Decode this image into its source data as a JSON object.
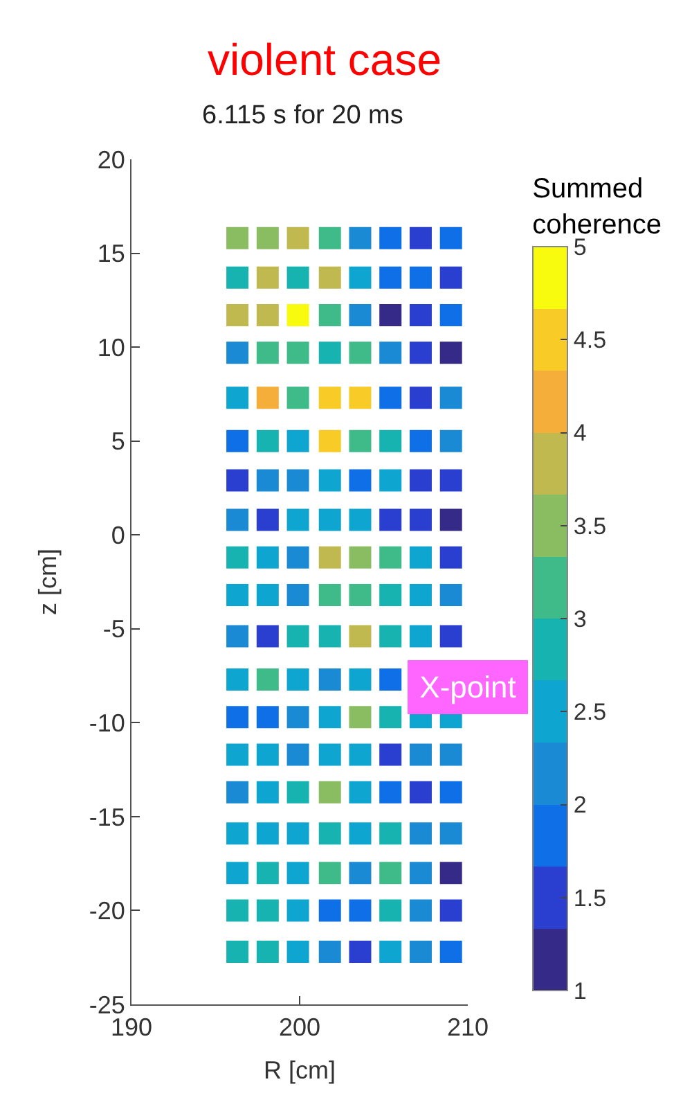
{
  "chart_data": {
    "type": "scatter",
    "title": "violent case",
    "subtitle": "6.115 s for 20 ms",
    "xlabel": "R [cm]",
    "ylabel": "z [cm]",
    "clabel": "Summed coherence",
    "marker": "square",
    "xlim": [
      190,
      210
    ],
    "xticks": [
      190,
      200,
      210
    ],
    "ylim": [
      -25,
      20
    ],
    "yticks": [
      -25,
      -20,
      -15,
      -10,
      -5,
      0,
      5,
      10,
      15,
      20
    ],
    "clim": [
      1,
      5
    ],
    "cticks": [
      1,
      1.5,
      2,
      2.5,
      3,
      3.5,
      4,
      4.5,
      5
    ],
    "annotations": [
      "X-point"
    ],
    "x": [
      196.3,
      198.1,
      199.9,
      201.8,
      203.6,
      205.4,
      207.2,
      209.0,
      196.3,
      198.1,
      199.9,
      201.8,
      203.6,
      205.4,
      207.2,
      209.0,
      196.3,
      198.1,
      199.9,
      201.8,
      203.6,
      205.4,
      207.2,
      209.0,
      196.3,
      198.1,
      199.9,
      201.8,
      203.6,
      205.4,
      207.2,
      209.0,
      196.3,
      198.1,
      199.9,
      201.8,
      203.6,
      205.4,
      207.2,
      209.0,
      196.3,
      198.1,
      199.9,
      201.8,
      203.6,
      205.4,
      207.2,
      209.0,
      196.3,
      198.1,
      199.9,
      201.8,
      203.6,
      205.4,
      207.2,
      209.0,
      196.3,
      198.1,
      199.9,
      201.8,
      203.6,
      205.4,
      207.2,
      209.0,
      196.3,
      198.1,
      199.9,
      201.8,
      203.6,
      205.4,
      207.2,
      209.0,
      196.3,
      198.1,
      199.9,
      201.8,
      203.6,
      205.4,
      207.2,
      209.0,
      196.3,
      198.1,
      199.9,
      201.8,
      203.6,
      205.4,
      207.2,
      209.0,
      196.3,
      198.1,
      199.9,
      201.8,
      203.6,
      205.4,
      null,
      null,
      196.3,
      198.1,
      199.9,
      201.8,
      203.6,
      205.4,
      207.2,
      209.0,
      196.3,
      198.1,
      199.9,
      201.8,
      203.6,
      205.4,
      207.2,
      209.0,
      196.3,
      198.1,
      199.9,
      201.8,
      203.6,
      205.4,
      207.2,
      209.0,
      196.3,
      198.1,
      199.9,
      201.8,
      203.6,
      205.4,
      207.2,
      209.0,
      196.3,
      198.1,
      199.9,
      201.8,
      203.6,
      205.4,
      207.2,
      209.0,
      196.3,
      198.1,
      199.9,
      201.8,
      203.6,
      205.4,
      207.2,
      209.0,
      196.3,
      198.1,
      199.9,
      201.8,
      203.6,
      205.4,
      207.2,
      209.0
    ],
    "values": [
      15.8,
      15.8,
      15.8,
      15.8,
      15.8,
      15.8,
      15.8,
      15.8,
      13.7,
      13.7,
      13.7,
      13.7,
      13.7,
      13.7,
      13.7,
      13.7,
      11.7,
      11.7,
      11.7,
      11.7,
      11.7,
      11.7,
      11.7,
      11.7,
      9.7,
      9.7,
      9.7,
      9.7,
      9.7,
      9.7,
      9.7,
      9.7,
      7.3,
      7.3,
      7.3,
      7.3,
      7.3,
      7.3,
      7.3,
      7.3,
      5.0,
      5.0,
      5.0,
      5.0,
      5.0,
      5.0,
      5.0,
      5.0,
      2.9,
      2.9,
      2.9,
      2.9,
      2.9,
      2.9,
      2.9,
      2.9,
      0.8,
      0.8,
      0.8,
      0.8,
      0.8,
      0.8,
      0.8,
      0.8,
      -1.2,
      -1.2,
      -1.2,
      -1.2,
      -1.2,
      -1.2,
      -1.2,
      -1.2,
      -3.2,
      -3.2,
      -3.2,
      -3.2,
      -3.2,
      -3.2,
      -3.2,
      -3.2,
      -5.4,
      -5.4,
      -5.4,
      -5.4,
      -5.4,
      -5.4,
      -5.4,
      -5.4,
      -7.7,
      -7.7,
      -7.7,
      -7.7,
      -7.7,
      -7.7,
      null,
      null,
      -9.7,
      -9.7,
      -9.7,
      -9.7,
      -9.7,
      -9.7,
      -9.7,
      -9.7,
      -11.7,
      -11.7,
      -11.7,
      -11.7,
      -11.7,
      -11.7,
      -11.7,
      -11.7,
      -13.7,
      -13.7,
      -13.7,
      -13.7,
      -13.7,
      -13.7,
      -13.7,
      -13.7,
      -15.9,
      -15.9,
      -15.9,
      -15.9,
      -15.9,
      -15.9,
      -15.9,
      -15.9,
      -18.0,
      -18.0,
      -18.0,
      -18.0,
      -18.0,
      -18.0,
      -18.0,
      -18.0,
      -20.0,
      -20.0,
      -20.0,
      -20.0,
      -20.0,
      -20.0,
      -20.0,
      -20.0,
      -22.2,
      -22.2,
      -22.2,
      -22.2,
      -22.2,
      -22.2,
      -22.2,
      -22.2
    ],
    "cvalues": [
      3.5,
      3.5,
      3.8,
      3.2,
      2.2,
      1.8,
      1.5,
      1.8,
      2.8,
      3.8,
      2.8,
      3.8,
      2.5,
      1.8,
      1.8,
      1.5,
      3.8,
      3.8,
      4.8,
      3.2,
      2.2,
      1.2,
      1.5,
      1.8,
      2.2,
      3.2,
      3.2,
      2.8,
      3.2,
      2.2,
      1.5,
      1.2,
      2.5,
      4.2,
      3.2,
      4.5,
      4.5,
      1.8,
      1.5,
      2.2,
      1.8,
      2.8,
      2.5,
      4.5,
      3.2,
      2.8,
      1.8,
      2.2,
      1.5,
      2.2,
      2.2,
      2.5,
      1.8,
      2.5,
      1.5,
      1.5,
      2.2,
      1.5,
      2.5,
      2.5,
      2.5,
      1.5,
      1.5,
      1.2,
      2.8,
      2.5,
      2.2,
      3.8,
      3.5,
      3.2,
      2.5,
      1.5,
      2.5,
      2.5,
      2.2,
      3.2,
      3.2,
      2.8,
      2.5,
      2.2,
      2.2,
      1.5,
      2.8,
      2.8,
      3.8,
      2.8,
      2.5,
      1.5,
      2.5,
      3.2,
      2.5,
      2.2,
      2.5,
      1.8,
      null,
      null,
      1.8,
      1.8,
      2.2,
      2.5,
      3.5,
      2.8,
      2.5,
      2.5,
      2.5,
      2.5,
      2.2,
      2.5,
      2.5,
      1.5,
      2.2,
      2.2,
      2.2,
      2.5,
      2.8,
      3.5,
      2.5,
      1.8,
      1.5,
      1.8,
      2.5,
      2.5,
      2.5,
      2.8,
      2.5,
      2.8,
      2.2,
      2.2,
      2.5,
      2.8,
      2.5,
      3.2,
      2.2,
      3.2,
      2.2,
      1.2,
      2.8,
      2.8,
      2.5,
      1.8,
      1.8,
      2.8,
      2.2,
      1.5,
      2.8,
      2.8,
      2.5,
      2.2,
      1.5,
      2.5,
      2.2,
      1.8
    ]
  }
}
